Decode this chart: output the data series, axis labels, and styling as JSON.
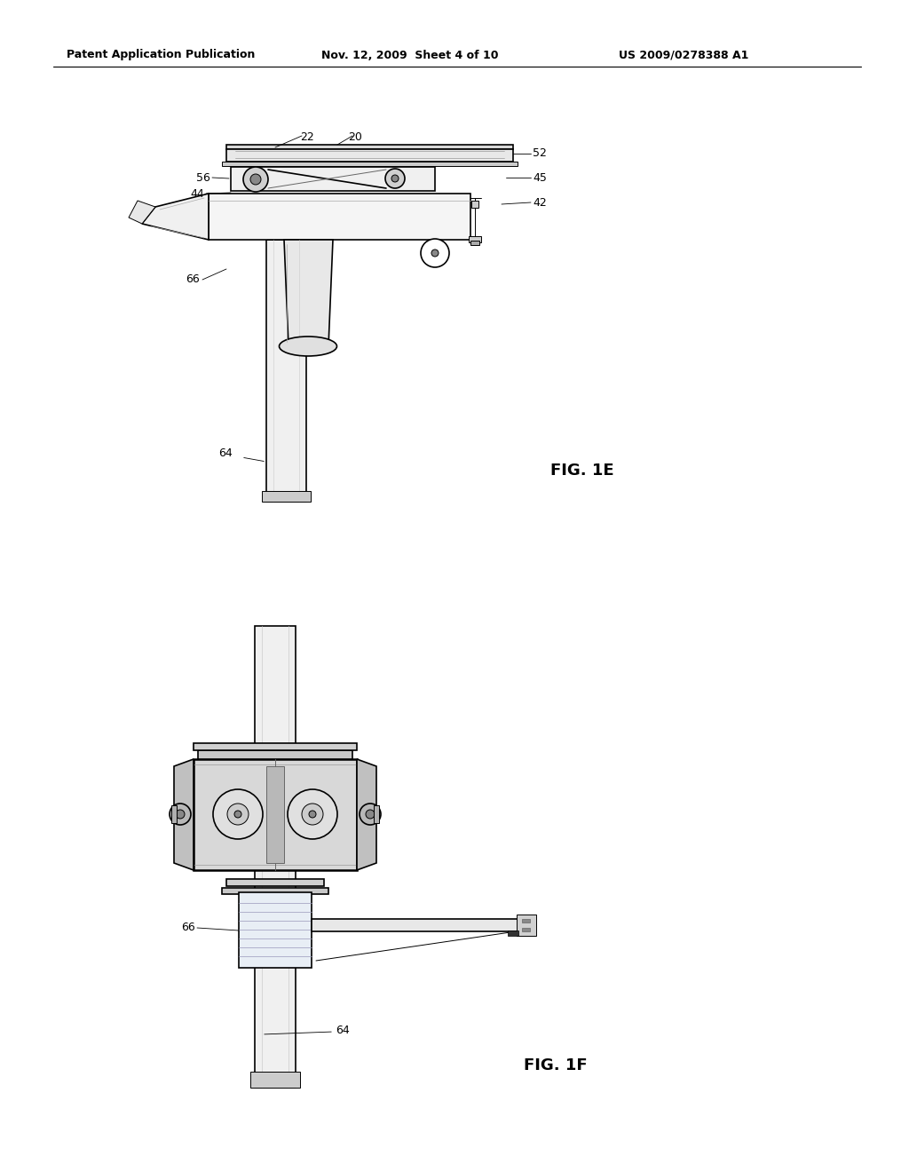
{
  "background_color": "#ffffff",
  "header_left": "Patent Application Publication",
  "header_mid": "Nov. 12, 2009  Sheet 4 of 10",
  "header_right": "US 2009/0278388 A1",
  "fig1e_label": "FIG. 1E",
  "fig1f_label": "FIG. 1F",
  "line_color": "#000000",
  "lw_thin": 0.7,
  "lw_med": 1.2,
  "lw_thick": 1.8,
  "ref_fontsize": 9,
  "header_fontsize": 9,
  "fig_label_fontsize": 13
}
